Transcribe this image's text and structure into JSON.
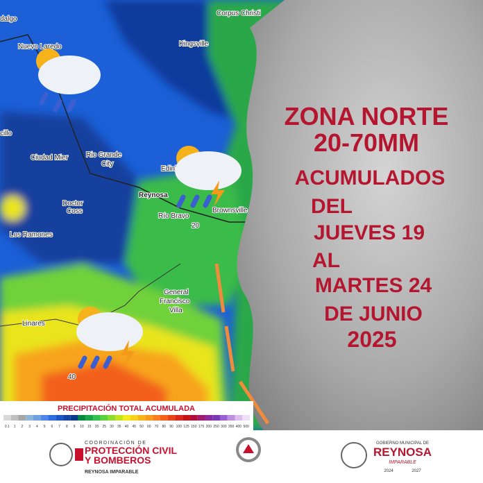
{
  "map": {
    "places": [
      "dalgo",
      "Corpus Christi",
      "Nuevo Laredo",
      "Kingsville",
      "cillo",
      "Ciudad Mier",
      "Rio Grande",
      "City",
      "Edinb",
      "Reynosa",
      "Doctor",
      "Coss",
      "Brownsville",
      "Río Bravo",
      "20",
      "Los Ramones",
      "General",
      "Francisco",
      "Villa",
      "Linares",
      "40"
    ]
  },
  "legend": {
    "title": "PRECIPITACIÓN TOTAL ACUMULADA",
    "ticks": [
      "0.1",
      "1",
      "2",
      "3",
      "4",
      "5",
      "6",
      "7",
      "8",
      "9",
      "10",
      "15",
      "20",
      "25",
      "30",
      "35",
      "40",
      "45",
      "50",
      "60",
      "70",
      "80",
      "90",
      "100",
      "125",
      "150",
      "175",
      "200",
      "250",
      "300",
      "350",
      "400",
      "500"
    ],
    "colors": [
      "#d9d9d9",
      "#bfbfbf",
      "#a6a6a6",
      "#8fb4d9",
      "#6fa0e0",
      "#4f87e8",
      "#2e6edc",
      "#1c57c7",
      "#1446a8",
      "#0d3a8c",
      "#0a8a3c",
      "#1aa64a",
      "#33c24d",
      "#5fd13a",
      "#8fdc2e",
      "#c2e41f",
      "#f2ea1a",
      "#f7d21a",
      "#f7b51a",
      "#f79a1a",
      "#f77e1a",
      "#f2601a",
      "#e8441a",
      "#d9281a",
      "#c4141a",
      "#b00f3c",
      "#a01a6e",
      "#8c2a9e",
      "#7a3ab8",
      "#9a5fd0",
      "#bf8fe0",
      "#dcbfee",
      "#f0e0f7"
    ]
  },
  "headline": [
    "ZONA  NORTE",
    "20-70MM",
    "ACUMULADOS",
    "DEL",
    "JUEVES 19",
    "AL",
    "MARTES 24",
    "DE JUNIO",
    "2025"
  ],
  "footer": {
    "left": [
      "COORDINACIÓN DE",
      "PROTECCIÓN CIVIL",
      "Y BOMBEROS",
      "REYNOSA IMPARABLE"
    ],
    "right": [
      "GOBIERNO MUNICIPAL DE",
      "REYNOSA",
      "IMPARABLE",
      "2024",
      "2027"
    ]
  }
}
